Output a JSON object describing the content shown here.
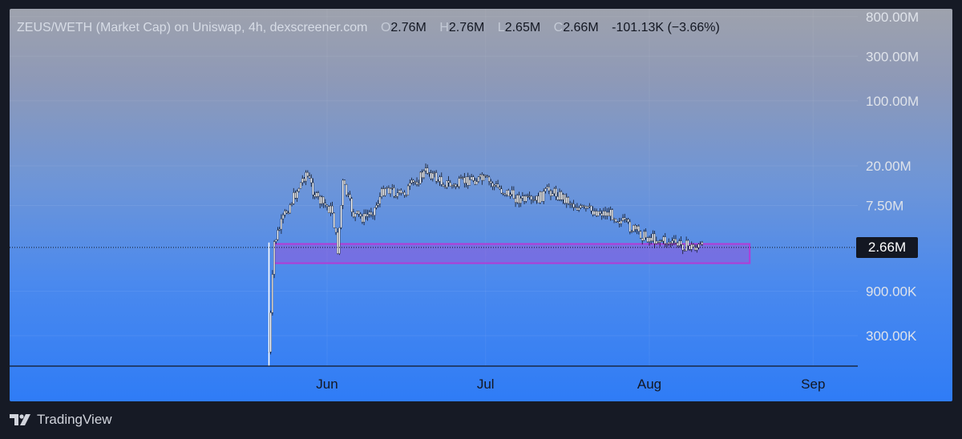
{
  "legend": {
    "title": "ZEUS/WETH (Market Cap) on Uniswap, 4h, dexscreener.com",
    "open_label": "O",
    "open": "2.76M",
    "high_label": "H",
    "high": "2.76M",
    "low_label": "L",
    "low": "2.65M",
    "close_label": "C",
    "close": "2.66M",
    "change": "-101.13K (−3.66%)"
  },
  "current_price_label": "2.66M",
  "branding": {
    "name": "TradingView"
  },
  "colors": {
    "highlight_box": "#b23cd6",
    "candles": "#ffffff",
    "price_label_bg": "#131722"
  },
  "chart_data": {
    "type": "candlestick",
    "scale": "log",
    "y_ticks": [
      "800.00M",
      "300.00M",
      "100.00M",
      "20.00M",
      "7.50M",
      "900.00K",
      "300.00K"
    ],
    "y_tick_values": [
      800000000,
      300000000,
      100000000,
      20000000,
      7500000,
      900000,
      300000
    ],
    "x_ticks": [
      "Jun",
      "Jul",
      "Aug",
      "Sep"
    ],
    "x_tick_dates": [
      "2024-06-01",
      "2024-07-01",
      "2024-08-01",
      "2024-09-01"
    ],
    "x_range": [
      "2024-05-12",
      "2024-09-04"
    ],
    "current_price": 2660000,
    "highlight_zone": {
      "x_start": "2024-05-22",
      "x_end": "2024-08-20",
      "y_low": 1800000,
      "y_high": 2900000
    },
    "series": [
      {
        "values": [
          [
            "2024-05-21",
            200000
          ],
          [
            "2024-05-22",
            3000000
          ],
          [
            "2024-05-24",
            6000000
          ],
          [
            "2024-05-26",
            10000000
          ],
          [
            "2024-05-28",
            17000000
          ],
          [
            "2024-05-30",
            9000000
          ],
          [
            "2024-06-02",
            6500000
          ],
          [
            "2024-06-03",
            2500000
          ],
          [
            "2024-06-04",
            13000000
          ],
          [
            "2024-06-06",
            6000000
          ],
          [
            "2024-06-08",
            5500000
          ],
          [
            "2024-06-10",
            7000000
          ],
          [
            "2024-06-12",
            12000000
          ],
          [
            "2024-06-15",
            9500000
          ],
          [
            "2024-06-18",
            14000000
          ],
          [
            "2024-06-20",
            18000000
          ],
          [
            "2024-06-22",
            14000000
          ],
          [
            "2024-06-25",
            12000000
          ],
          [
            "2024-06-28",
            14500000
          ],
          [
            "2024-07-01",
            14000000
          ],
          [
            "2024-07-04",
            11000000
          ],
          [
            "2024-07-07",
            9000000
          ],
          [
            "2024-07-10",
            8000000
          ],
          [
            "2024-07-13",
            11000000
          ],
          [
            "2024-07-16",
            9000000
          ],
          [
            "2024-07-19",
            6800000
          ],
          [
            "2024-07-22",
            6500000
          ],
          [
            "2024-07-25",
            6000000
          ],
          [
            "2024-07-28",
            4500000
          ],
          [
            "2024-07-31",
            3500000
          ],
          [
            "2024-08-03",
            3200000
          ],
          [
            "2024-08-06",
            2900000
          ],
          [
            "2024-08-09",
            2700000
          ],
          [
            "2024-08-11",
            2660000
          ]
        ]
      }
    ]
  }
}
